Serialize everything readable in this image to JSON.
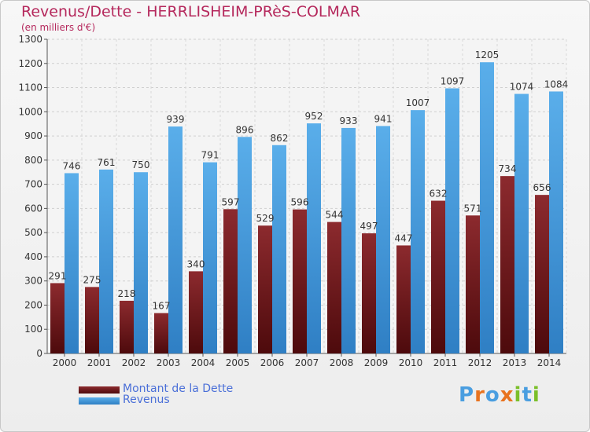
{
  "header": {
    "title": "Revenus/Dette - HERRLISHEIM-PRèS-COLMAR",
    "subtitle": "(en milliers d'€)"
  },
  "legend": [
    {
      "label": "Montant de la Dette",
      "color": "#7a1f22"
    },
    {
      "label": "Revenus",
      "color": "#4a9ee0"
    }
  ],
  "logo": {
    "text": "Proxiti",
    "letters": [
      "P",
      "r",
      "o",
      "x",
      "i",
      "t",
      "i"
    ],
    "colors": [
      "#4a9ee0",
      "#e8731f",
      "#4a9ee0",
      "#e8731f",
      "#7bbf2a",
      "#4a9ee0",
      "#7bbf2a"
    ]
  },
  "chart_data": {
    "type": "bar",
    "categories": [
      "2000",
      "2001",
      "2002",
      "2003",
      "2004",
      "2005",
      "2006",
      "2007",
      "2008",
      "2009",
      "2010",
      "2011",
      "2012",
      "2013",
      "2014"
    ],
    "series": [
      {
        "name": "Montant de la Dette",
        "color": "#7a1f22",
        "values": [
          291,
          275,
          218,
          167,
          340,
          597,
          529,
          596,
          544,
          497,
          447,
          632,
          571,
          734,
          656
        ]
      },
      {
        "name": "Revenus",
        "color": "#4a9ee0",
        "values": [
          746,
          761,
          750,
          939,
          791,
          896,
          862,
          952,
          933,
          941,
          1007,
          1097,
          1205,
          1074,
          1084
        ]
      }
    ],
    "ylim": [
      0,
      1300
    ],
    "yticks": [
      0,
      100,
      200,
      300,
      400,
      500,
      600,
      700,
      800,
      900,
      1000,
      1100,
      1200,
      1300
    ],
    "grid": true,
    "legend_position": "bottom-left"
  }
}
